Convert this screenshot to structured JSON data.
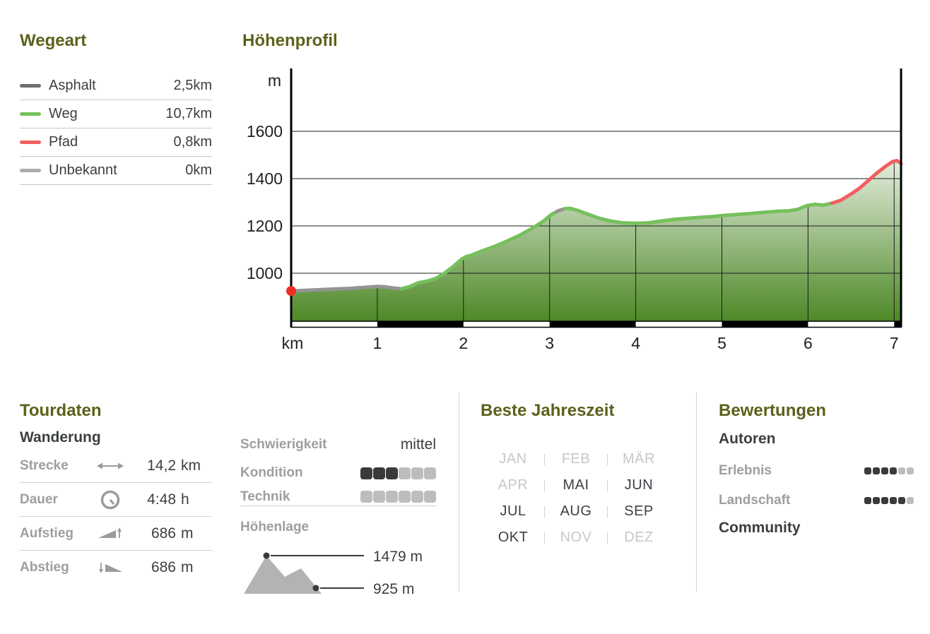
{
  "colors": {
    "heading": "#5d611b",
    "text_dark": "#3b3f42",
    "text_gray": "#9e9e9e",
    "axis": "#1f1f1f",
    "grid": "#1c1c1c",
    "fill_top": "#ffffff",
    "fill_bottom": "#4d8826",
    "start_dot": "#ee2e24",
    "rating_filled": "#3a3a3a",
    "rating_empty": "#bdbdbd"
  },
  "wegeart": {
    "title": "Wegeart",
    "items": [
      {
        "label": "Asphalt",
        "value": "2,5km",
        "color": "#6e6e6e"
      },
      {
        "label": "Weg",
        "value": "10,7km",
        "color": "#76c05c"
      },
      {
        "label": "Pfad",
        "value": "0,8km",
        "color": "#f0605f"
      },
      {
        "label": "Unbekannt",
        "value": "0km",
        "color": "#ababab"
      }
    ]
  },
  "hoehenprofil": {
    "title": "Höhenprofil",
    "chart_data": {
      "type": "area",
      "title": "Höhenprofil",
      "xlabel": "km",
      "ylabel": "m",
      "x_ticks": [
        1,
        2,
        3,
        4,
        5,
        6,
        7
      ],
      "y_ticks": [
        1000,
        1200,
        1400,
        1600
      ],
      "x_range": [
        0,
        7.08
      ],
      "y_axis_range": [
        797,
        1865
      ],
      "grid": true,
      "min_elevation_m": 925,
      "max_elevation_m": 1479,
      "start_marker": {
        "km": 0,
        "elevation": 925
      },
      "profile": [
        [
          0,
          925
        ],
        [
          0.12,
          927
        ],
        [
          0.3,
          930
        ],
        [
          0.5,
          933
        ],
        [
          0.7,
          936
        ],
        [
          0.88,
          941
        ],
        [
          1.0,
          944
        ],
        [
          1.08,
          943
        ],
        [
          1.18,
          938
        ],
        [
          1.28,
          934
        ],
        [
          1.38,
          944
        ],
        [
          1.48,
          960
        ],
        [
          1.58,
          967
        ],
        [
          1.68,
          978
        ],
        [
          1.78,
          1000
        ],
        [
          1.88,
          1028
        ],
        [
          1.98,
          1060
        ],
        [
          2.03,
          1070
        ],
        [
          2.1,
          1077
        ],
        [
          2.2,
          1092
        ],
        [
          2.35,
          1112
        ],
        [
          2.5,
          1135
        ],
        [
          2.65,
          1160
        ],
        [
          2.8,
          1190
        ],
        [
          2.92,
          1218
        ],
        [
          3.02,
          1248
        ],
        [
          3.1,
          1264
        ],
        [
          3.18,
          1273
        ],
        [
          3.24,
          1274
        ],
        [
          3.32,
          1266
        ],
        [
          3.45,
          1249
        ],
        [
          3.58,
          1232
        ],
        [
          3.72,
          1220
        ],
        [
          3.85,
          1213
        ],
        [
          4.0,
          1211
        ],
        [
          4.15,
          1213
        ],
        [
          4.3,
          1221
        ],
        [
          4.45,
          1228
        ],
        [
          4.6,
          1232
        ],
        [
          4.75,
          1236
        ],
        [
          4.9,
          1240
        ],
        [
          5.05,
          1245
        ],
        [
          5.2,
          1249
        ],
        [
          5.35,
          1253
        ],
        [
          5.5,
          1258
        ],
        [
          5.65,
          1262
        ],
        [
          5.78,
          1264
        ],
        [
          5.88,
          1270
        ],
        [
          5.98,
          1285
        ],
        [
          6.08,
          1291
        ],
        [
          6.18,
          1288
        ],
        [
          6.28,
          1296
        ],
        [
          6.38,
          1308
        ],
        [
          6.5,
          1335
        ],
        [
          6.6,
          1360
        ],
        [
          6.7,
          1392
        ],
        [
          6.8,
          1424
        ],
        [
          6.9,
          1452
        ],
        [
          6.98,
          1472
        ],
        [
          7.03,
          1476
        ],
        [
          7.08,
          1464
        ]
      ],
      "segments": [
        {
          "surface": "Asphalt",
          "from": 0,
          "to": 1.28,
          "color": "#949494"
        },
        {
          "surface": "Weg",
          "from": 1.28,
          "to": 3.08,
          "color": "#76c05c"
        },
        {
          "surface": "Asphalt",
          "from": 3.08,
          "to": 3.18,
          "color": "#949494"
        },
        {
          "surface": "Weg",
          "from": 3.18,
          "to": 6.28,
          "color": "#76c05c"
        },
        {
          "surface": "Pfad",
          "from": 6.28,
          "to": 7.08,
          "color": "#f0605f"
        }
      ]
    }
  },
  "tourdaten": {
    "title": "Tourdaten",
    "subtitle": "Wanderung",
    "rows": [
      {
        "label": "Strecke",
        "icon": "distance-icon",
        "value": "14,2",
        "unit": "km"
      },
      {
        "label": "Dauer",
        "icon": "clock-icon",
        "value": "4:48",
        "unit": "h"
      },
      {
        "label": "Aufstieg",
        "icon": "ascent-icon",
        "value": "686",
        "unit": "m"
      },
      {
        "label": "Abstieg",
        "icon": "descent-icon",
        "value": "686",
        "unit": "m"
      }
    ]
  },
  "eigenschaften": {
    "schwierigkeit_label": "Schwierigkeit",
    "schwierigkeit_value": "mittel",
    "kondition_label": "Kondition",
    "technik_label": "Technik",
    "hoehenlage_label": "Höhenlage",
    "hoehenlage_max": "1479 m",
    "hoehenlage_min": "925 m"
  },
  "ratings": {
    "kondition": {
      "filled": 3,
      "total": 6
    },
    "technik": {
      "filled": 0,
      "total": 6
    },
    "erlebnis": {
      "filled": 4,
      "total": 6
    },
    "landschaft": {
      "filled": 5,
      "total": 6
    }
  },
  "jahreszeit": {
    "title": "Beste Jahreszeit",
    "months": [
      {
        "label": "JAN",
        "active": false
      },
      {
        "label": "FEB",
        "active": false
      },
      {
        "label": "MÄR",
        "active": false
      },
      {
        "label": "APR",
        "active": false
      },
      {
        "label": "MAI",
        "active": true
      },
      {
        "label": "JUN",
        "active": true
      },
      {
        "label": "JUL",
        "active": true
      },
      {
        "label": "AUG",
        "active": true
      },
      {
        "label": "SEP",
        "active": true
      },
      {
        "label": "OKT",
        "active": true
      },
      {
        "label": "NOV",
        "active": false
      },
      {
        "label": "DEZ",
        "active": false
      }
    ]
  },
  "bewertungen": {
    "title": "Bewertungen",
    "autoren": "Autoren",
    "erlebnis_label": "Erlebnis",
    "landschaft_label": "Landschaft",
    "community": "Community"
  }
}
